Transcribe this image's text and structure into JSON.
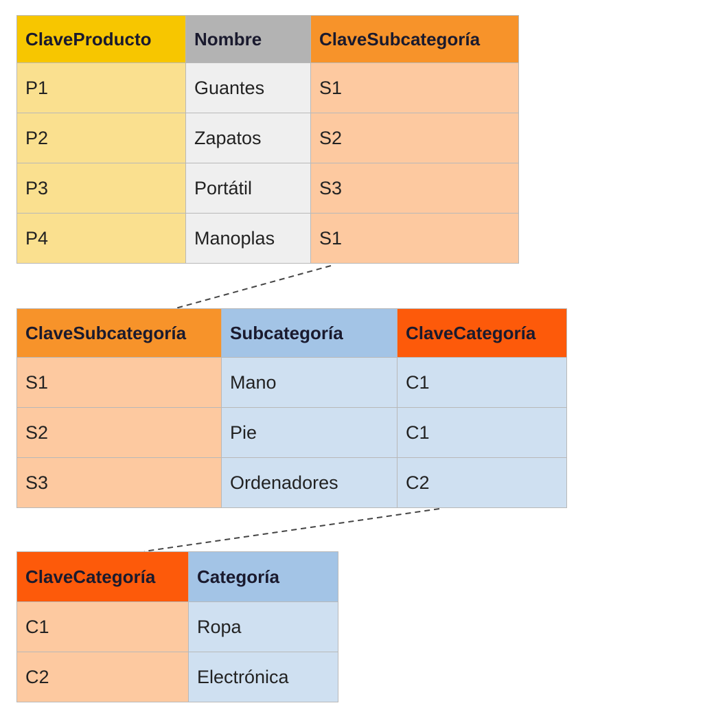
{
  "tables": [
    {
      "headers": [
        "ClaveProducto",
        "Nombre",
        "ClaveSubcategoría"
      ],
      "rows": [
        [
          "P1",
          "Guantes",
          "S1"
        ],
        [
          "P2",
          "Zapatos",
          "S2"
        ],
        [
          "P3",
          "Portátil",
          "S3"
        ],
        [
          "P4",
          "Manoplas",
          "S1"
        ]
      ]
    },
    {
      "headers": [
        "ClaveSubcategoría",
        "Subcategoría",
        "ClaveCategoría"
      ],
      "rows": [
        [
          "S1",
          "Mano",
          "C1"
        ],
        [
          "S2",
          "Pie",
          "C1"
        ],
        [
          "S3",
          "Ordenadores",
          "C2"
        ]
      ]
    },
    {
      "headers": [
        "ClaveCategoría",
        "Categoría"
      ],
      "rows": [
        [
          "C1",
          "Ropa"
        ],
        [
          "C2",
          "Electrónica"
        ]
      ]
    }
  ]
}
